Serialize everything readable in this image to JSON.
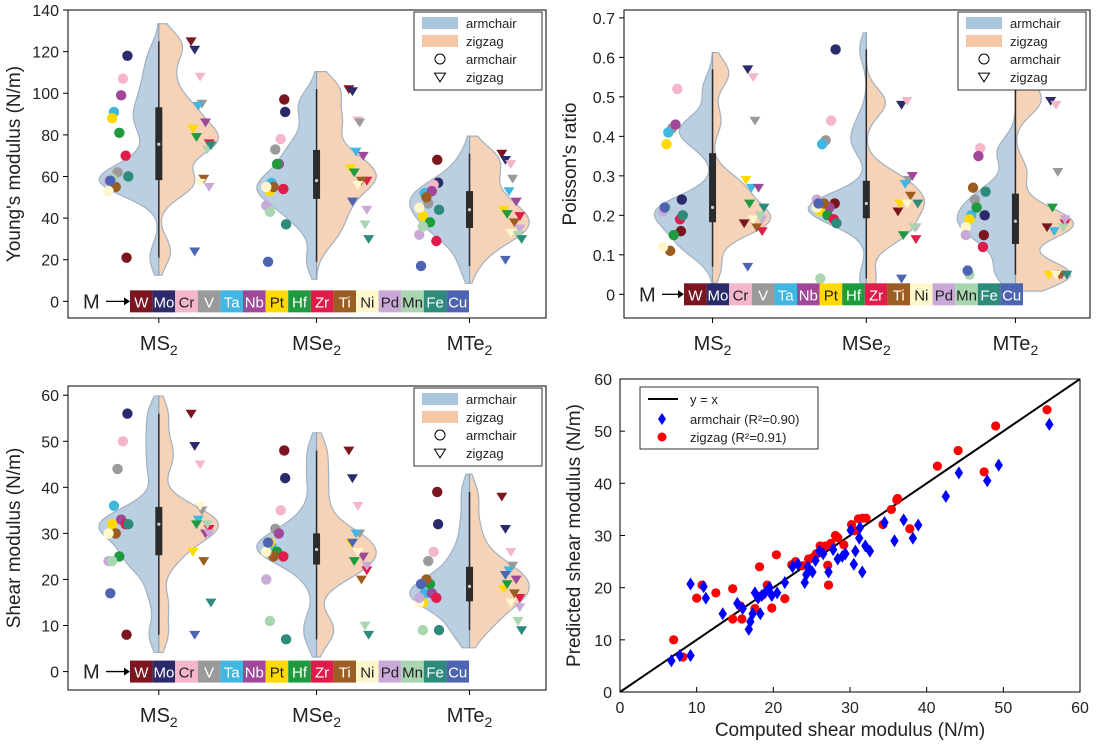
{
  "colors": {
    "armchair_violin": "#a9c4dc",
    "zigzag_violin": "#f4c7a6",
    "violin_edge": "#8b9fb2",
    "box": "#2b2b2b",
    "diag_line": "#000000",
    "scatter_armchair": "#0000ff",
    "scatter_zigzag": "#ff0000"
  },
  "elements": [
    {
      "sym": "W",
      "color": "#7b1520"
    },
    {
      "sym": "Mo",
      "color": "#2b2a6b"
    },
    {
      "sym": "Cr",
      "color": "#f4b6c8"
    },
    {
      "sym": "V",
      "color": "#9a9a9a"
    },
    {
      "sym": "Ta",
      "color": "#41b6e0"
    },
    {
      "sym": "Nb",
      "color": "#a0479a"
    },
    {
      "sym": "Pt",
      "color": "#ffd900"
    },
    {
      "sym": "Hf",
      "color": "#1f9a3f"
    },
    {
      "sym": "Zr",
      "color": "#e01c4b"
    },
    {
      "sym": "Ti",
      "color": "#9b5d21"
    },
    {
      "sym": "Ni",
      "color": "#fff7cc"
    },
    {
      "sym": "Pd",
      "color": "#c9a9d8"
    },
    {
      "sym": "Mn",
      "color": "#a9d5b0"
    },
    {
      "sym": "Fe",
      "color": "#2e8a7a"
    },
    {
      "sym": "Cu",
      "color": "#4d64b0"
    }
  ],
  "m_label": "M",
  "panels": [
    {
      "ylabel": "Young's modulus (N/m)",
      "yticks": [
        "0",
        "20",
        "40",
        "60",
        "80",
        "100",
        "120",
        "140"
      ],
      "categories": [
        "MS",
        "MSe",
        "MTe"
      ],
      "subscript": "2",
      "legend": [
        "armchair",
        "zigzag",
        "armchair",
        "zigzag"
      ]
    },
    {
      "ylabel": "Poisson's ratio",
      "yticks": [
        "0",
        "0.1",
        "0.2",
        "0.3",
        "0.4",
        "0.5",
        "0.6",
        "0.7"
      ],
      "categories": [
        "MS",
        "MSe",
        "MTe"
      ],
      "subscript": "2",
      "legend": [
        "armchair",
        "zigzag",
        "armchair",
        "zigzag"
      ]
    },
    {
      "ylabel": "Shear modulus (N/m)",
      "yticks": [
        "0",
        "10",
        "20",
        "30",
        "40",
        "50",
        "60"
      ],
      "categories": [
        "MS",
        "MSe",
        "MTe"
      ],
      "subscript": "2",
      "legend": [
        "armchair",
        "zigzag",
        "armchair",
        "zigzag"
      ]
    }
  ],
  "chart_data": [
    {
      "type": "violin",
      "ylabel": "Young's modulus (N/m)",
      "ylim": [
        -8,
        140
      ],
      "categories": [
        "MS2",
        "MSe2",
        "MTe2"
      ],
      "series": [
        {
          "name": "armchair",
          "values": [
            [
              21,
              118,
              107,
              62,
              91,
              99,
              88,
              81,
              70,
              55,
              53,
              58,
              59,
              60,
              58
            ],
            [
              97,
              91,
              78,
              73,
              57,
              66,
              53,
              66,
              54,
              55,
              55,
              46,
              43,
              37,
              19
            ],
            [
              68,
              57,
              56,
              47,
              52,
              53,
              41,
              38,
              29,
              50,
              45,
              32,
              36,
              44,
              17
            ]
          ]
        },
        {
          "name": "zigzag",
          "values": [
            [
              125,
              121,
              108,
              95,
              94,
              86,
              83,
              79,
              76,
              59,
              57,
              55,
              73,
              75,
              24
            ],
            [
              102,
              101,
              87,
              86,
              72,
              70,
              64,
              62,
              58,
              58,
              56,
              44,
              37,
              30,
              48
            ],
            [
              71,
              68,
              66,
              59,
              53,
              48,
              44,
              42,
              41,
              38,
              33,
              35,
              32,
              30,
              20
            ]
          ]
        }
      ],
      "legend": [
        "armchair",
        "zigzag",
        "armchair",
        "zigzag"
      ]
    },
    {
      "type": "violin",
      "ylabel": "Poisson's ratio",
      "ylim": [
        -0.06,
        0.72
      ],
      "categories": [
        "MS2",
        "MSe2",
        "MTe2"
      ],
      "series": [
        {
          "name": "armchair",
          "values": [
            [
              0.16,
              0.24,
              0.52,
              0.42,
              0.41,
              0.43,
              0.38,
              0.15,
              0.19,
              0.11,
              0.12,
              0.21,
              0.22,
              0.2,
              0.22
            ],
            [
              0.23,
              0.62,
              0.44,
              0.39,
              0.38,
              0.22,
              0.21,
              0.2,
              0.19,
              0.23,
              0.22,
              0.24,
              0.04,
              0.18,
              0.23
            ],
            [
              0.15,
              0.2,
              0.37,
              0.24,
              0.2,
              0.35,
              0.19,
              0.22,
              0.12,
              0.27,
              0.17,
              0.15,
              0.05,
              0.26,
              0.06
            ]
          ]
        },
        {
          "name": "zigzag",
          "values": [
            [
              0.18,
              0.57,
              0.55,
              0.44,
              0.27,
              0.27,
              0.29,
              0.23,
              0.16,
              0.17,
              0.19,
              0.19,
              0.2,
              0.22,
              0.07
            ],
            [
              0.21,
              0.48,
              0.49,
              0.29,
              0.28,
              0.3,
              0.23,
              0.15,
              0.14,
              0.25,
              0.23,
              0.17,
              0.17,
              0.23,
              0.04
            ],
            [
              0.17,
              0.49,
              0.48,
              0.31,
              0.16,
              0.05,
              0.05,
              0.22,
              0.18,
              0.05,
              0.05,
              0.19,
              0.17,
              0.05,
              0.54
            ]
          ]
        }
      ],
      "legend": [
        "armchair",
        "zigzag",
        "armchair",
        "zigzag"
      ]
    },
    {
      "type": "violin",
      "ylabel": "Shear modulus (N/m)",
      "ylim": [
        -4,
        62
      ],
      "categories": [
        "MS2",
        "MSe2",
        "MTe2"
      ],
      "series": [
        {
          "name": "armchair",
          "values": [
            [
              8,
              56,
              50,
              44,
              36,
              33,
              32,
              25,
              32,
              30,
              30,
              24,
              24,
              32,
              17
            ],
            [
              48,
              42,
              35,
              31,
              27,
              30,
              28,
              26,
              25,
              25,
              26,
              20,
              11,
              7,
              28
            ],
            [
              39,
              32,
              26,
              24,
              17,
              17,
              15,
              19,
              16,
              20,
              15,
              16,
              9,
              9,
              19
            ]
          ]
        },
        {
          "name": "zigzag",
          "values": [
            [
              56,
              49,
              45,
              35,
              33,
              30,
              26,
              32,
              31,
              24,
              36,
              30,
              32,
              15,
              8
            ],
            [
              48,
              42,
              36,
              30,
              30,
              25,
              28,
              24,
              22,
              20,
              26,
              23,
              10,
              8,
              28
            ],
            [
              38,
              31,
              26,
              23,
              22,
              20,
              18,
              19,
              16,
              17,
              15,
              14,
              11,
              9,
              21
            ]
          ]
        }
      ],
      "legend": [
        "armchair",
        "zigzag",
        "armchair",
        "zigzag"
      ]
    },
    {
      "type": "scatter",
      "xlabel": "Computed shear modulus (N/m)",
      "ylabel": "Predicted shear modulus (N/m)",
      "xlim": [
        0,
        60
      ],
      "ylim": [
        0,
        60
      ],
      "xticks": [
        "0",
        "10",
        "20",
        "30",
        "40",
        "50",
        "60"
      ],
      "yticks": [
        "0",
        "10",
        "20",
        "30",
        "40",
        "50",
        "60"
      ],
      "line_label": "y = x",
      "series": [
        {
          "name": "armchair (R²=0.90)",
          "marker": "diamond",
          "points": [
            [
              6.7,
              6
            ],
            [
              7.8,
              7
            ],
            [
              9.2,
              7
            ],
            [
              9.2,
              20.7
            ],
            [
              10.9,
              20.2
            ],
            [
              11.2,
              18
            ],
            [
              13.4,
              15
            ],
            [
              15.3,
              17
            ],
            [
              16,
              16
            ],
            [
              16.8,
              12
            ],
            [
              17,
              13.5
            ],
            [
              17.3,
              15
            ],
            [
              17.6,
              19
            ],
            [
              18,
              18
            ],
            [
              18.5,
              18.5
            ],
            [
              19,
              19.2
            ],
            [
              19.5,
              20
            ],
            [
              19.8,
              18.5
            ],
            [
              20.5,
              19
            ],
            [
              22.5,
              24
            ],
            [
              23.2,
              24.5
            ],
            [
              24.1,
              21
            ],
            [
              24.3,
              22.5
            ],
            [
              24.5,
              24
            ],
            [
              25.1,
              23
            ],
            [
              25.5,
              25.2
            ],
            [
              26,
              27
            ],
            [
              26.5,
              26.5
            ],
            [
              27.2,
              23
            ],
            [
              27.8,
              27.3
            ],
            [
              28.4,
              25.5
            ],
            [
              29,
              26
            ],
            [
              29.4,
              26.5
            ],
            [
              30.1,
              31
            ],
            [
              30.5,
              24.5
            ],
            [
              30.7,
              27
            ],
            [
              31.3,
              31.5
            ],
            [
              31.6,
              23
            ],
            [
              32,
              28
            ],
            [
              32.6,
              27
            ],
            [
              34.5,
              32.5
            ],
            [
              35.8,
              29
            ],
            [
              37,
              33
            ],
            [
              38.2,
              29.5
            ],
            [
              38.9,
              32
            ],
            [
              42.5,
              37.5
            ],
            [
              44.2,
              42
            ],
            [
              47.9,
              40.5
            ],
            [
              49.4,
              43.5
            ],
            [
              56,
              51.3
            ],
            [
              31.2,
              29.5
            ],
            [
              21.5,
              21
            ],
            [
              18.3,
              15
            ]
          ]
        },
        {
          "name": "zigzag (R²=0.91)",
          "marker": "circle",
          "points": [
            [
              7,
              10
            ],
            [
              8.2,
              6.7
            ],
            [
              10,
              18
            ],
            [
              10.7,
              20.5
            ],
            [
              14.7,
              14
            ],
            [
              14.7,
              19.8
            ],
            [
              15.7,
              16.5
            ],
            [
              15.9,
              14
            ],
            [
              17.6,
              16
            ],
            [
              18.2,
              24
            ],
            [
              18.5,
              18.5
            ],
            [
              19.2,
              20.5
            ],
            [
              19.8,
              16.1
            ],
            [
              20.4,
              26.3
            ],
            [
              21.5,
              17.9
            ],
            [
              22.4,
              24.4
            ],
            [
              22.9,
              25
            ],
            [
              23.8,
              24.2
            ],
            [
              24.6,
              25.5
            ],
            [
              25.2,
              25.8
            ],
            [
              25.6,
              26.5
            ],
            [
              26.2,
              26.8
            ],
            [
              26.8,
              28
            ],
            [
              27.1,
              24.3
            ],
            [
              27.2,
              20.5
            ],
            [
              27.5,
              28.5
            ],
            [
              28.1,
              30
            ],
            [
              28.4,
              29.6
            ],
            [
              29.2,
              28.2
            ],
            [
              30.2,
              32.1
            ],
            [
              30.6,
              30.9
            ],
            [
              31.1,
              33.2
            ],
            [
              31.6,
              33.3
            ],
            [
              32.1,
              33.3
            ],
            [
              34.3,
              32.1
            ],
            [
              36.1,
              36.8
            ],
            [
              36.2,
              37.1
            ],
            [
              37.8,
              31.3
            ],
            [
              41.4,
              43.3
            ],
            [
              44.1,
              46.3
            ],
            [
              47.5,
              42.2
            ],
            [
              49,
              51
            ],
            [
              55.7,
              54.1
            ],
            [
              35.4,
              35
            ],
            [
              26.1,
              28
            ],
            [
              12.5,
              19
            ]
          ]
        }
      ]
    }
  ]
}
